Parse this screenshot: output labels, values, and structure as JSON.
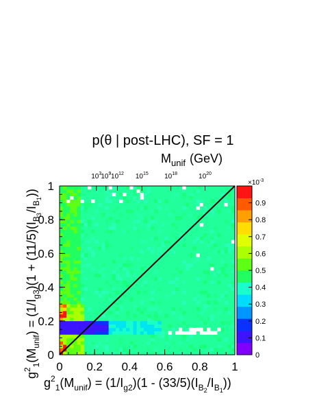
{
  "chart_data": {
    "type": "heatmap",
    "title": "p(θ | post-LHC), SF = 1",
    "x_axis": {
      "label_parts": [
        "g",
        "2",
        "1",
        "(M",
        "unif",
        ") = (1/I",
        "g2",
        ")(1 - (33/5)(I",
        "B",
        "2",
        "/I",
        "B",
        "1",
        "))"
      ],
      "range": [
        0,
        1
      ],
      "ticks": [
        0,
        0.2,
        0.4,
        0.6,
        0.8,
        1
      ],
      "tick_labels": [
        "0",
        "0.2",
        "0.4",
        "0.6",
        "0.8",
        "1"
      ]
    },
    "y_axis": {
      "label_parts": [
        "g",
        "2",
        "1",
        "(M",
        "unif",
        ") = (1/I",
        "g3",
        ")(1 + (11/5)(I",
        "B",
        "3",
        "/I",
        "B",
        "1",
        "))"
      ],
      "range": [
        0,
        1
      ],
      "ticks": [
        0,
        0.2,
        0.4,
        0.6,
        0.8,
        1
      ],
      "tick_labels": [
        "0",
        "0.2",
        "0.4",
        "0.6",
        "0.8",
        "1"
      ]
    },
    "top_axis": {
      "label": "M",
      "label_sub": "unif",
      "label_unit": "(GeV)",
      "ticks": [
        {
          "base": "10",
          "exp": "3",
          "x": 0.21
        },
        {
          "base": "10",
          "exp": "9",
          "x": 0.265
        },
        {
          "base": "10",
          "exp": "12",
          "x": 0.33
        },
        {
          "base": "10",
          "exp": "15",
          "x": 0.47
        },
        {
          "base": "10",
          "exp": "18",
          "x": 0.635
        },
        {
          "base": "10",
          "exp": "20",
          "x": 0.83
        }
      ]
    },
    "colorbar": {
      "range": [
        0,
        0.001
      ],
      "multiplier": "×10-3",
      "multiplier_base": "×10",
      "multiplier_exp": "-3",
      "ticks": [
        0,
        0.1,
        0.2,
        0.3,
        0.4,
        0.5,
        0.6,
        0.7,
        0.8,
        0.9
      ],
      "tick_labels": [
        "0",
        "0.1",
        "0.2",
        "0.3",
        "0.4",
        "0.5",
        "0.6",
        "0.7",
        "0.8",
        "0.9"
      ],
      "colors": [
        "#8000ff",
        "#3c14ff",
        "#0a32ff",
        "#0096ff",
        "#00dcff",
        "#19ffcc",
        "#21ff60",
        "#5dff14",
        "#aaff00",
        "#e0ff00",
        "#ffdd00",
        "#ffa000",
        "#ff5a00",
        "#ff1414"
      ]
    },
    "diagonal_line": {
      "from": [
        0,
        0
      ],
      "to": [
        1,
        1
      ],
      "color": "#000000"
    },
    "grid_bins": 50,
    "dominant_value_range": [
      0.38,
      0.42
    ],
    "colors": {
      "background": "#ffffff",
      "heatmap_base": "#20ff9a"
    }
  }
}
